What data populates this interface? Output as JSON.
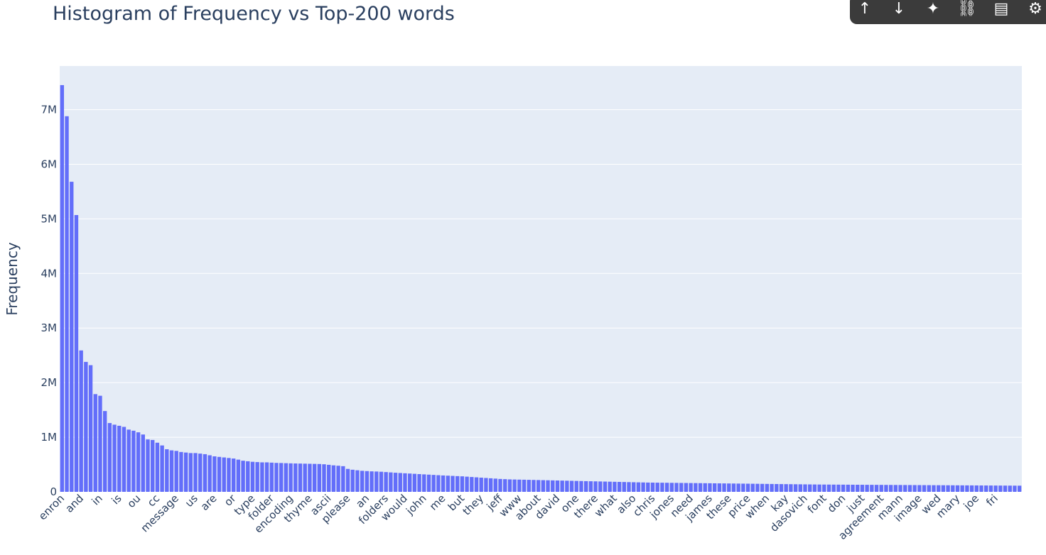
{
  "toolbar": {
    "icons": [
      "arrow-up-icon",
      "arrow-down-icon",
      "sparkle-icon",
      "link-icon",
      "comment-icon",
      "gear-icon"
    ],
    "glyphs": [
      "↑",
      "↓",
      "✦",
      "⛓",
      "▤",
      "⚙"
    ]
  },
  "chart_data": {
    "type": "bar",
    "title": "Histogram of Frequency vs Top-200 words",
    "xlabel": "",
    "ylabel": "Frequency",
    "ylim": [
      0,
      7800000
    ],
    "yticks": [
      0,
      1000000,
      2000000,
      3000000,
      4000000,
      5000000,
      6000000,
      7000000
    ],
    "ytick_labels": [
      "0",
      "1M",
      "2M",
      "3M",
      "4M",
      "5M",
      "6M",
      "7M"
    ],
    "grid": true,
    "bar_color": "#636efa",
    "plot_bg": "#e5ecf6",
    "bar_count": 200,
    "tick_labels": [
      "enron",
      "and",
      "in",
      "is",
      "ou",
      "cc",
      "message",
      "us",
      "are",
      "or",
      "type",
      "folder",
      "encoding",
      "thyme",
      "ascii",
      "please",
      "an",
      "folders",
      "would",
      "john",
      "me",
      "but",
      "they",
      "jeff",
      "www",
      "about",
      "david",
      "one",
      "there",
      "what",
      "also",
      "chris",
      "jones",
      "need",
      "james",
      "these",
      "price",
      "when",
      "kay",
      "dasovich",
      "font",
      "don",
      "just",
      "agreement",
      "mann",
      "image",
      "wed",
      "mary",
      "joe",
      "fri"
    ],
    "values": [
      7450000,
      6880000,
      5680000,
      5070000,
      2590000,
      2380000,
      2320000,
      1790000,
      1760000,
      1480000,
      1260000,
      1230000,
      1210000,
      1190000,
      1140000,
      1120000,
      1090000,
      1050000,
      960000,
      950000,
      900000,
      850000,
      780000,
      760000,
      750000,
      730000,
      720000,
      710000,
      710000,
      700000,
      690000,
      670000,
      650000,
      640000,
      630000,
      620000,
      610000,
      590000,
      570000,
      560000,
      550000,
      545000,
      540000,
      540000,
      535000,
      530000,
      528000,
      525000,
      522000,
      520000,
      518000,
      516000,
      514000,
      512000,
      510000,
      505000,
      495000,
      485000,
      478000,
      470000,
      420000,
      405000,
      395000,
      385000,
      380000,
      375000,
      372000,
      368000,
      362000,
      356000,
      350000,
      345000,
      340000,
      335000,
      330000,
      325000,
      320000,
      315000,
      310000,
      305000,
      300000,
      296000,
      292000,
      288000,
      284000,
      278000,
      272000,
      266000,
      260000,
      254000,
      248000,
      242000,
      236000,
      232000,
      228000,
      226000,
      224000,
      222000,
      220000,
      218000,
      216000,
      214000,
      212000,
      210000,
      208000,
      206000,
      204000,
      202000,
      200000,
      198000,
      196000,
      194000,
      192000,
      190000,
      188000,
      186000,
      184000,
      182000,
      180000,
      178000,
      176000,
      174000,
      172000,
      170000,
      169000,
      168000,
      167000,
      166000,
      165000,
      164000,
      163000,
      162000,
      161000,
      160000,
      159000,
      158000,
      157000,
      156000,
      155000,
      154000,
      153000,
      152000,
      151000,
      150000,
      149000,
      148000,
      147000,
      146000,
      145000,
      144000,
      143000,
      142000,
      141000,
      140000,
      139000,
      138000,
      137000,
      136000,
      135000,
      134000,
      133500,
      133000,
      132500,
      132000,
      131500,
      131000,
      130500,
      130000,
      129500,
      129000,
      128500,
      128000,
      127500,
      127000,
      126500,
      126000,
      125500,
      125000,
      124500,
      124000,
      123500,
      123000,
      122500,
      122000,
      121500,
      121000,
      120500,
      120000,
      119500,
      119000,
      118500,
      118000,
      117500,
      117000,
      116500,
      116000,
      115500,
      115000,
      114500,
      114000,
      113500,
      113000
    ]
  }
}
